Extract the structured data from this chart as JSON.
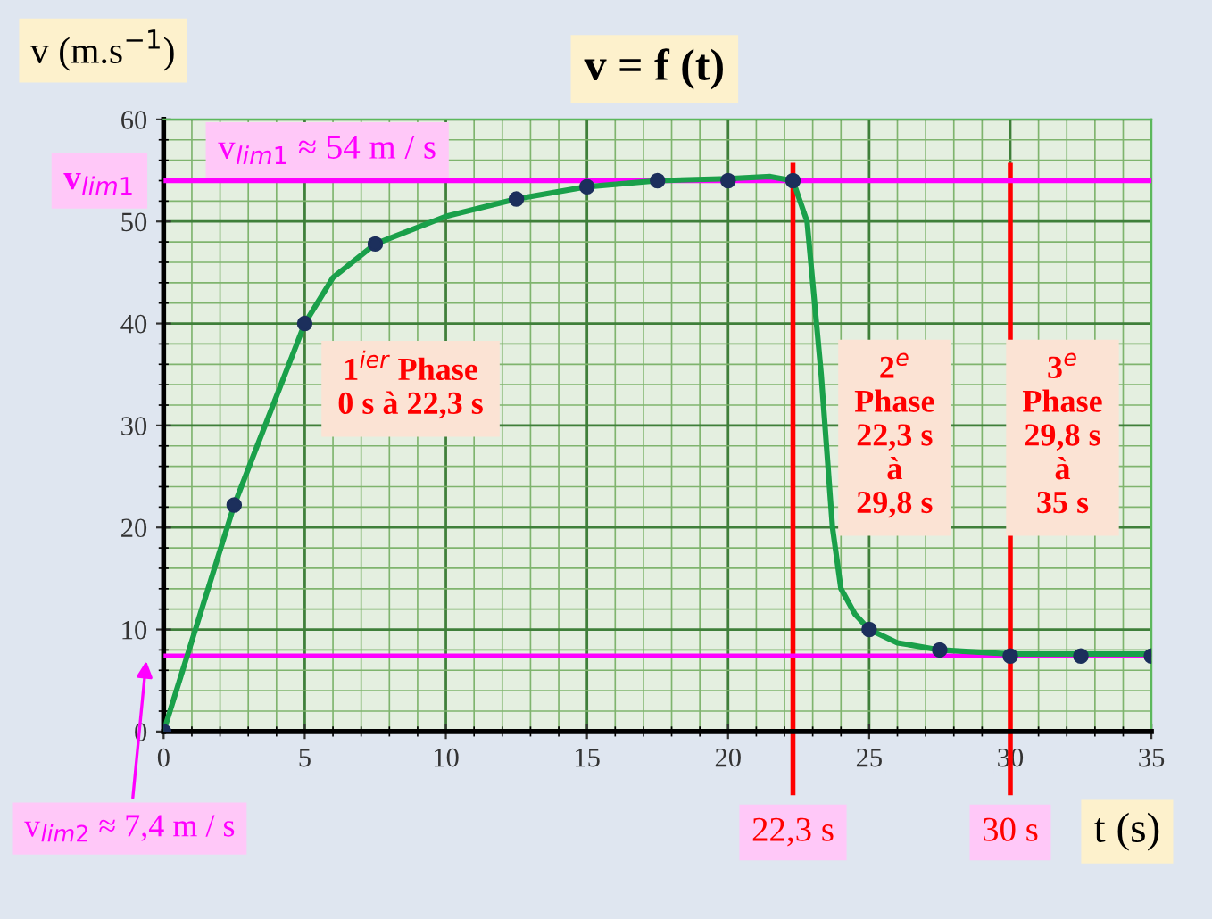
{
  "chart_data": {
    "type": "line",
    "title": "v = f (t)",
    "xlabel": "t (s)",
    "ylabel": "v (m.s$^{−1}$)",
    "xlim": [
      0,
      35
    ],
    "ylim": [
      0,
      60
    ],
    "xticks": [
      0,
      {
        "value": 1,
        "label": null
      },
      {
        "value": 2,
        "label": null
      },
      {
        "value": 3,
        "label": null
      },
      {
        "value": 4,
        "label": null
      },
      5,
      {
        "value": 6,
        "label": null
      },
      {
        "value": 7,
        "label": null
      },
      {
        "value": 8,
        "label": null
      },
      {
        "value": 9,
        "label": null
      },
      10,
      {
        "value": 11,
        "label": null
      },
      {
        "value": 12,
        "label": null
      },
      {
        "value": 13,
        "label": null
      },
      {
        "value": 14,
        "label": null
      },
      15,
      {
        "value": 16,
        "label": null
      },
      {
        "value": 17,
        "label": null
      },
      {
        "value": 18,
        "label": null
      },
      {
        "value": 19,
        "label": null
      },
      20,
      {
        "value": 21,
        "label": null
      },
      {
        "value": 22,
        "label": null
      },
      {
        "value": 23,
        "label": null
      },
      {
        "value": 24,
        "label": null
      },
      25,
      {
        "value": 26,
        "label": null
      },
      {
        "value": 27,
        "label": null
      },
      {
        "value": 28,
        "label": null
      },
      {
        "value": 29,
        "label": null
      },
      30,
      {
        "value": 31,
        "label": null
      },
      {
        "value": 32,
        "label": null
      },
      {
        "value": 33,
        "label": null
      },
      {
        "value": 34,
        "label": null
      },
      35
    ],
    "yticks": [
      0,
      {
        "value": 2,
        "label": null
      },
      {
        "value": 4,
        "label": null
      },
      {
        "value": 6,
        "label": null
      },
      {
        "value": 8,
        "label": null
      },
      10,
      {
        "value": 12,
        "label": null
      },
      {
        "value": 14,
        "label": null
      },
      {
        "value": 16,
        "label": null
      },
      {
        "value": 18,
        "label": null
      },
      20,
      {
        "value": 22,
        "label": null
      },
      {
        "value": 24,
        "label": null
      },
      {
        "value": 26,
        "label": null
      },
      {
        "value": 28,
        "label": null
      },
      30,
      {
        "value": 32,
        "label": null
      },
      {
        "value": 34,
        "label": null
      },
      {
        "value": 36,
        "label": null
      },
      {
        "value": 38,
        "label": null
      },
      40,
      {
        "value": 42,
        "label": null
      },
      {
        "value": 44,
        "label": null
      },
      {
        "value": 46,
        "label": null
      },
      {
        "value": 48,
        "label": null
      },
      50,
      {
        "value": 52,
        "label": null
      },
      {
        "value": 54,
        "label": null
      },
      {
        "value": 56,
        "label": null
      },
      {
        "value": 58,
        "label": null
      },
      60
    ],
    "grid": true,
    "series": [
      {
        "color": "#1aa04a",
        "marker": "none",
        "x": [
          0,
          2.5,
          5,
          6,
          7.5,
          10,
          12.5,
          15,
          17.5,
          20,
          21.5,
          22.3,
          22.8,
          23.3,
          23.7,
          24,
          24.5,
          25,
          26,
          27.5,
          30,
          35
        ],
        "values": [
          0,
          22.2,
          40,
          44.5,
          47.8,
          50.5,
          52.2,
          53.4,
          54,
          54.2,
          54.4,
          54,
          50,
          35,
          20,
          14,
          11.5,
          10,
          8.7,
          8,
          7.6,
          7.6
        ]
      },
      {
        "type": "scatter",
        "color": "#1c2f5c",
        "marker": "circle",
        "x": [
          0,
          2.5,
          5,
          7.5,
          12.5,
          15,
          17.5,
          20,
          22.3,
          25,
          27.5,
          30,
          32.5,
          35
        ],
        "values": [
          0,
          22.2,
          40,
          47.8,
          52.2,
          53.4,
          54,
          54,
          54,
          10,
          8,
          7.4,
          7.4,
          7.4
        ]
      }
    ],
    "ref_lines": [
      {
        "axis": "y",
        "value": 54,
        "label": "v$_{lim1}$",
        "color": "#ff00ff"
      },
      {
        "axis": "y",
        "value": 7.4,
        "label": "v$_{lim2}$ ≈ 7,4 m / s",
        "color": "#ff00ff"
      },
      {
        "axis": "x",
        "value": 22.3,
        "label": "22,3 s",
        "color": "#ff0000"
      },
      {
        "axis": "x",
        "value": 30,
        "label": "30 s",
        "color": "#ff0000"
      }
    ],
    "annotations": [
      "v$_{lim1}$ ≈ 54 m / s",
      "1$^{ier}$ Phase\n0 s à 22,3 s",
      "2$^{e}$\nPhase\n22,3 s\nà\n29,8 s",
      "3$^{e}$\nPhase\n29,8 s\nà\n35 s"
    ]
  }
}
